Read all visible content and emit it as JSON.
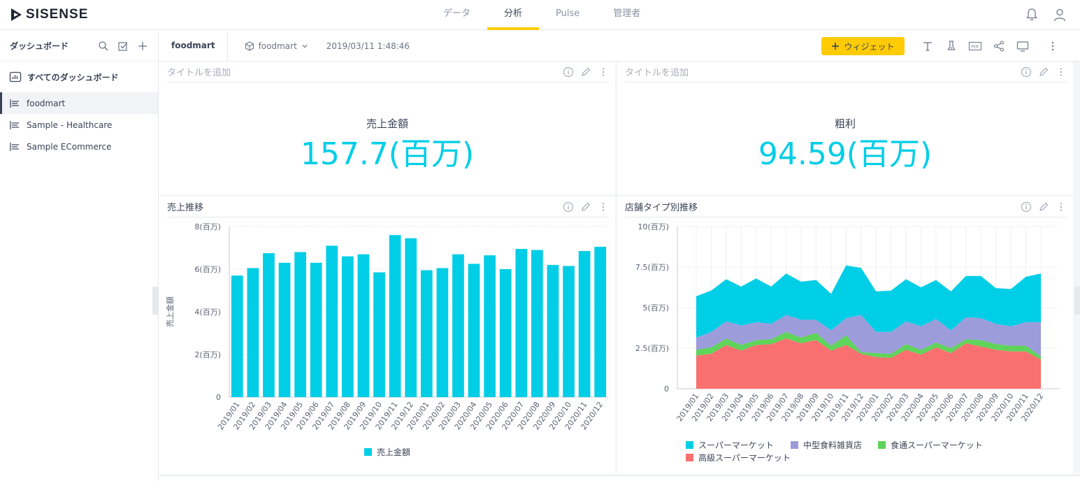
{
  "app": {
    "logo_text": "SISENSE"
  },
  "nav": {
    "tabs": [
      {
        "label": "データ",
        "active": false
      },
      {
        "label": "分析",
        "active": true
      },
      {
        "label": "Pulse",
        "active": false
      },
      {
        "label": "管理者",
        "active": false
      }
    ],
    "icons": [
      "bell-icon",
      "user-icon"
    ]
  },
  "sidebar": {
    "title": "ダッシュボード",
    "tools": [
      "search-icon",
      "select-icon",
      "add-icon"
    ],
    "all_label": "すべてのダッシュボード",
    "items": [
      {
        "label": "foodmart",
        "active": true
      },
      {
        "label": "Sample - Healthcare",
        "active": false
      },
      {
        "label": "Sample ECommerce",
        "active": false
      }
    ]
  },
  "dashboard": {
    "title": "foodmart",
    "cube": "foodmart",
    "date": "2019/03/11 1:48:46",
    "widget_button": "ウィジェット",
    "toolbar_icons": [
      "text-icon",
      "filter-icon",
      "pdf-icon",
      "share-icon",
      "screen-icon"
    ],
    "pdf_label": "PDF"
  },
  "widgets": {
    "w1": {
      "title": "タイトルを追加",
      "label": "売上金額",
      "value": "157.7(百万)"
    },
    "w2": {
      "title": "タイトルを追加",
      "label": "粗利",
      "value": "94.59(百万)"
    },
    "w3": {
      "title": "売上推移"
    },
    "w4": {
      "title": "店舗タイプ別推移"
    }
  },
  "colors": {
    "accent": "#ffcb05",
    "bar": "#00cee6",
    "supermarket": "#00cee6",
    "midsize": "#9c9cdb",
    "food_super": "#5fd35a",
    "deluxe": "#fa7070"
  },
  "chart_data": [
    {
      "type": "bar",
      "title": "売上推移",
      "ylabel": "売上金額",
      "ylim": [
        0,
        8
      ],
      "yticks": [
        "0",
        "2(百万)",
        "4(百万)",
        "6(百万)",
        "8(百万)"
      ],
      "categories": [
        "2019/01",
        "2019/02",
        "2019/03",
        "2019/04",
        "2019/05",
        "2019/06",
        "2019/07",
        "2019/08",
        "2019/09",
        "2019/10",
        "2019/11",
        "2019/12",
        "2020/01",
        "2020/02",
        "2020/03",
        "2020/04",
        "2020/05",
        "2020/06",
        "2020/07",
        "2020/08",
        "2020/09",
        "2020/10",
        "2020/11",
        "2020/12"
      ],
      "series": [
        {
          "name": "売上金額",
          "values": [
            5.7,
            6.05,
            6.75,
            6.3,
            6.8,
            6.3,
            7.1,
            6.6,
            6.7,
            5.85,
            7.6,
            7.45,
            5.95,
            6.05,
            6.7,
            6.25,
            6.65,
            6.0,
            6.95,
            6.9,
            6.2,
            6.15,
            6.85,
            7.05
          ]
        }
      ],
      "legend": "bottom",
      "grid": true
    },
    {
      "type": "area",
      "title": "店舗タイプ別推移",
      "stacked": true,
      "ylim": [
        0,
        10
      ],
      "yticks": [
        "0",
        "2.5(百万)",
        "5(百万)",
        "7.5(百万)",
        "10(百万)"
      ],
      "categories": [
        "2019/01",
        "2019/02",
        "2019/03",
        "2019/04",
        "2019/05",
        "2019/06",
        "2019/07",
        "2019/08",
        "2019/09",
        "2019/10",
        "2019/11",
        "2019/12",
        "2020/01",
        "2020/02",
        "2020/03",
        "2020/04",
        "2020/05",
        "2020/06",
        "2020/07",
        "2020/08",
        "2020/09",
        "2020/10",
        "2020/11",
        "2020/12"
      ],
      "series": [
        {
          "name": "高級スーパーマーケット",
          "values": [
            2.05,
            2.15,
            2.7,
            2.35,
            2.7,
            2.75,
            3.1,
            2.8,
            3.0,
            2.35,
            2.7,
            2.15,
            1.95,
            1.9,
            2.4,
            2.1,
            2.55,
            2.2,
            2.8,
            2.6,
            2.4,
            2.3,
            2.3,
            1.8
          ]
        },
        {
          "name": "食通スーパーマーケット",
          "values": [
            0.35,
            0.4,
            0.4,
            0.35,
            0.3,
            0.3,
            0.4,
            0.35,
            0.45,
            0.3,
            0.6,
            0.1,
            0.25,
            0.25,
            0.35,
            0.3,
            0.3,
            0.3,
            0.25,
            0.4,
            0.35,
            0.35,
            0.35,
            0.2
          ]
        },
        {
          "name": "中型食料雑貨店",
          "values": [
            0.75,
            0.95,
            1.05,
            1.2,
            1.1,
            0.95,
            1.05,
            1.1,
            0.8,
            0.95,
            1.05,
            2.3,
            1.3,
            1.35,
            1.4,
            1.45,
            1.45,
            1.1,
            1.35,
            1.35,
            1.25,
            1.2,
            1.45,
            2.1
          ]
        },
        {
          "name": "スーパーマーケット",
          "values": [
            2.55,
            2.55,
            2.6,
            2.4,
            2.7,
            2.3,
            2.55,
            2.35,
            2.45,
            2.25,
            3.25,
            2.9,
            2.5,
            2.55,
            2.6,
            2.4,
            2.4,
            2.4,
            2.55,
            2.6,
            2.2,
            2.3,
            2.8,
            3.0
          ]
        }
      ],
      "legend_order": [
        "スーパーマーケット",
        "中型食料雑貨店",
        "食通スーパーマーケット",
        "高級スーパーマーケット"
      ],
      "legend": "bottom",
      "grid": true
    }
  ]
}
